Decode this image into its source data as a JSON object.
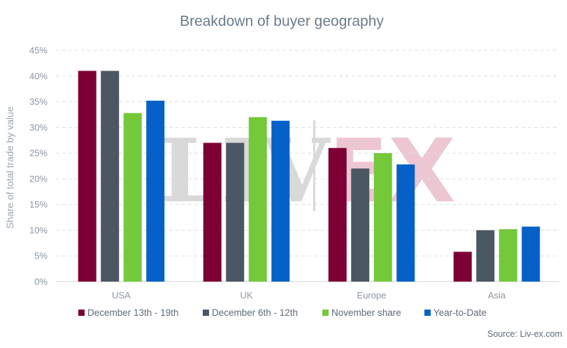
{
  "chart_data": {
    "type": "bar",
    "title": "Breakdown of buyer geography",
    "xlabel": "",
    "ylabel": "Share of total trade by value",
    "ylim": [
      0,
      45
    ],
    "ytick_values": [
      0,
      5,
      10,
      15,
      20,
      25,
      30,
      35,
      40,
      45
    ],
    "ytick_labels": [
      "0%",
      "5%",
      "10%",
      "15%",
      "20%",
      "25%",
      "30%",
      "35%",
      "40%",
      "45%"
    ],
    "categories": [
      "USA",
      "UK",
      "Europe",
      "Asia"
    ],
    "series": [
      {
        "name": "December 13th - 19th",
        "color": "#7d0034",
        "values": [
          41,
          27,
          26,
          5.8
        ]
      },
      {
        "name": "December 6th - 12th",
        "color": "#4b5762",
        "values": [
          41,
          27,
          22,
          10
        ]
      },
      {
        "name": "November share",
        "color": "#74c93b",
        "values": [
          32.8,
          32,
          25,
          10.2
        ]
      },
      {
        "name": "Year-to-Date",
        "color": "#0561c8",
        "values": [
          35.2,
          31.3,
          22.8,
          10.7
        ]
      }
    ],
    "grid": true,
    "legend_position": "bottom"
  },
  "watermark": {
    "left": "LIV",
    "right": "EX"
  },
  "source": "Source: Liv-ex.com"
}
